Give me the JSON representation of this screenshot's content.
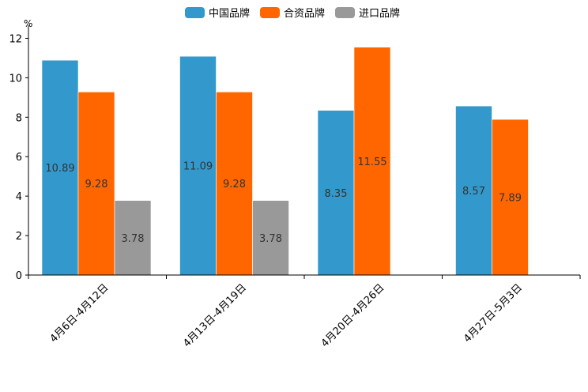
{
  "chart_data": {
    "type": "bar",
    "unit": "%",
    "categories": [
      "4月6日-4月12日",
      "4月13日-4月19日",
      "4月20日-4月26日",
      "4月27日-5月3日"
    ],
    "series": [
      {
        "name": "中国品牌",
        "color": "#3399cc",
        "values": [
          10.89,
          11.09,
          8.35,
          8.57
        ]
      },
      {
        "name": "合资品牌",
        "color": "#ff6600",
        "values": [
          9.28,
          9.28,
          11.55,
          7.89
        ]
      },
      {
        "name": "进口品牌",
        "color": "#999999",
        "values": [
          3.78,
          3.78,
          null,
          null
        ]
      }
    ],
    "yticks": [
      0,
      2,
      4,
      6,
      8,
      10,
      12
    ],
    "ylim": [
      0,
      12.5
    ],
    "legend_position": "top-center",
    "grid": false
  }
}
